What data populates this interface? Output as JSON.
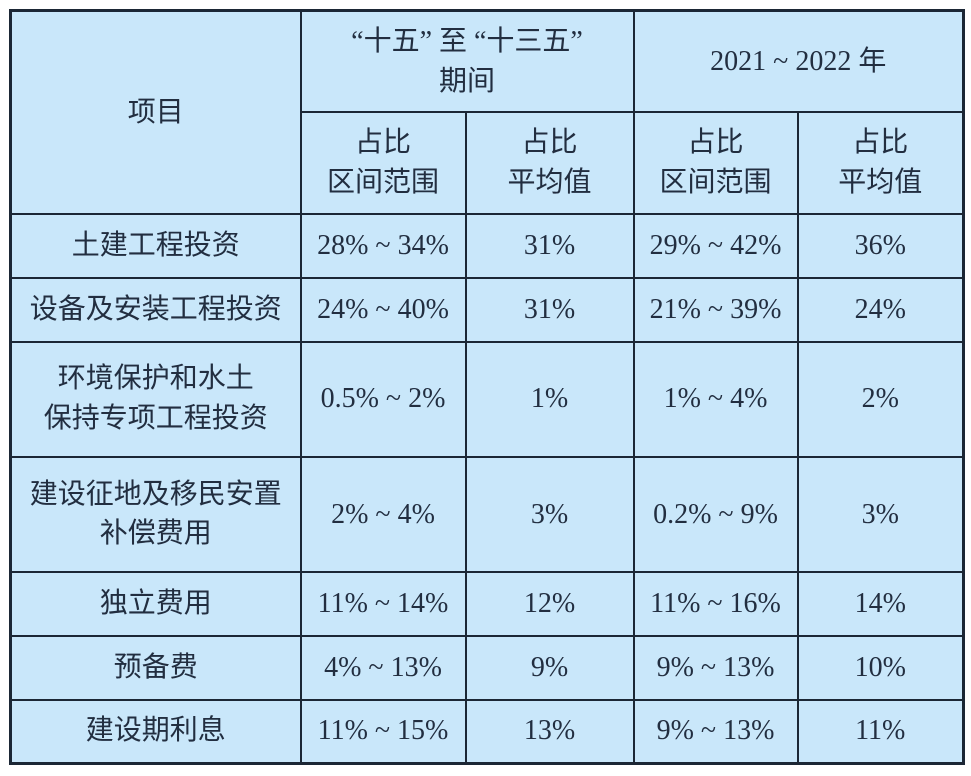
{
  "table": {
    "colors": {
      "cell_background": "#c9e7fa",
      "border": "#1b2735",
      "text": "#222e40"
    },
    "header": {
      "project": "项目",
      "period1_line1": "“十五” 至 “十三五”",
      "period1_line2": "期间",
      "period2": "2021 ~ 2022 年",
      "ratio_range_line1": "占比",
      "ratio_range_line2": "区间范围",
      "ratio_avg_line1": "占比",
      "ratio_avg_line2": "平均值"
    },
    "rows": [
      {
        "name1": "土建工程投资",
        "name2": "",
        "p1_range": "28% ~ 34%",
        "p1_avg": "31%",
        "p2_range": "29% ~ 42%",
        "p2_avg": "36%"
      },
      {
        "name1": "设备及安装工程投资",
        "name2": "",
        "p1_range": "24% ~ 40%",
        "p1_avg": "31%",
        "p2_range": "21% ~ 39%",
        "p2_avg": "24%"
      },
      {
        "name1": "环境保护和水土",
        "name2": "保持专项工程投资",
        "p1_range": "0.5% ~ 2%",
        "p1_avg": "1%",
        "p2_range": "1% ~ 4%",
        "p2_avg": "2%"
      },
      {
        "name1": "建设征地及移民安置",
        "name2": "补偿费用",
        "p1_range": "2% ~ 4%",
        "p1_avg": "3%",
        "p2_range": "0.2% ~ 9%",
        "p2_avg": "3%"
      },
      {
        "name1": "独立费用",
        "name2": "",
        "p1_range": "11% ~ 14%",
        "p1_avg": "12%",
        "p2_range": "11% ~ 16%",
        "p2_avg": "14%"
      },
      {
        "name1": "预备费",
        "name2": "",
        "p1_range": "4% ~ 13%",
        "p1_avg": "9%",
        "p2_range": "9% ~ 13%",
        "p2_avg": "10%"
      },
      {
        "name1": "建设期利息",
        "name2": "",
        "p1_range": "11% ~ 15%",
        "p1_avg": "13%",
        "p2_range": "9% ~ 13%",
        "p2_avg": "11%"
      }
    ]
  }
}
